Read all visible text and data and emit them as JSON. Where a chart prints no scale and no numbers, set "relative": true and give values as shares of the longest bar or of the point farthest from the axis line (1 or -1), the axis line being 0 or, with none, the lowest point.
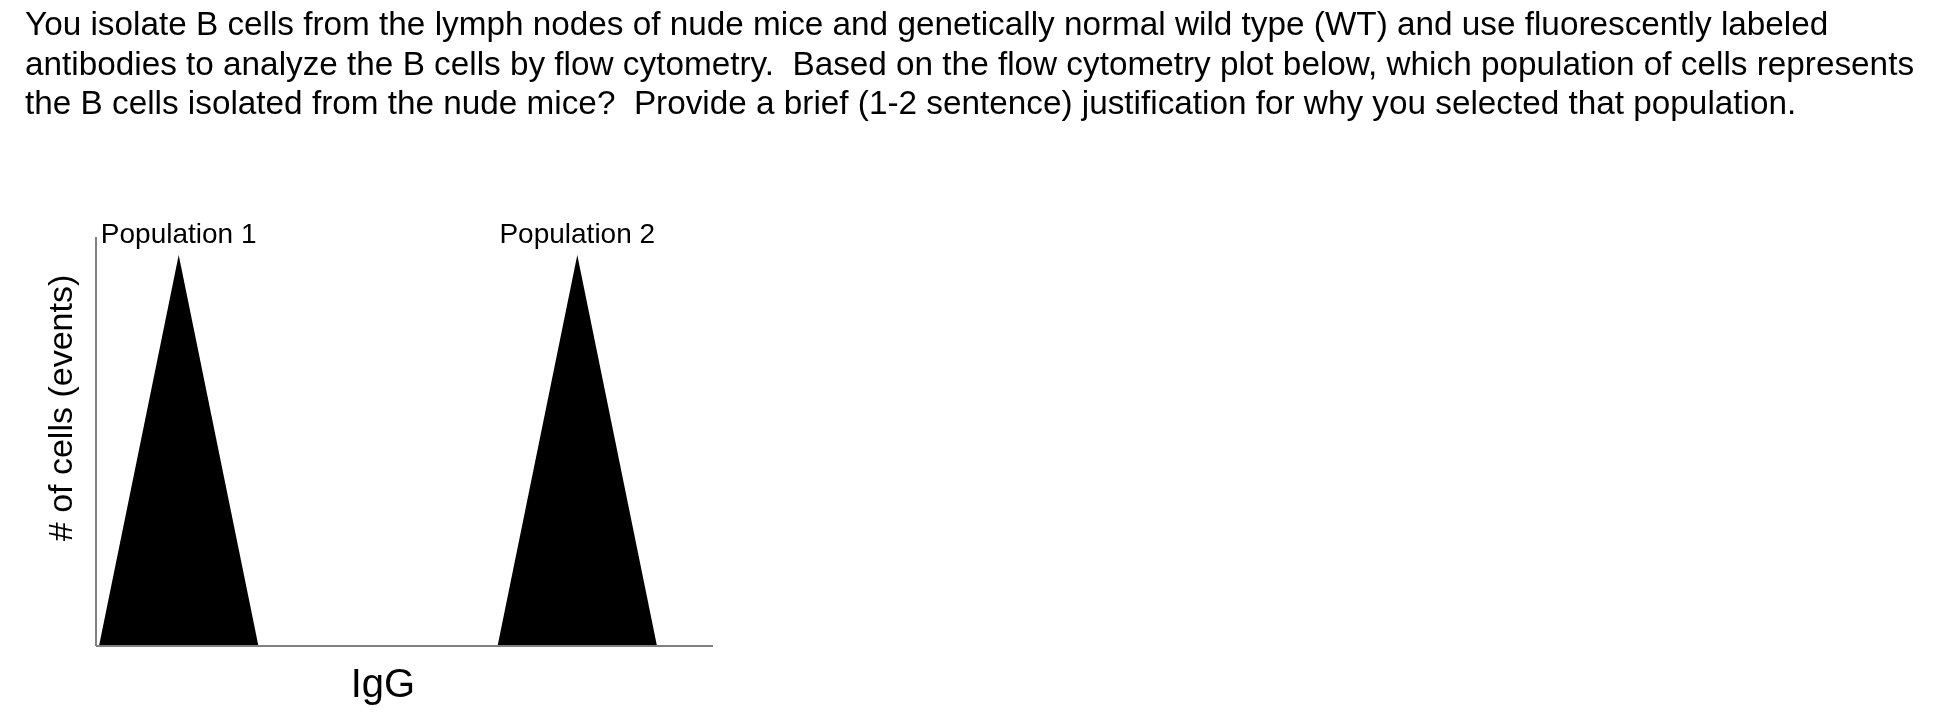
{
  "chart_data": {
    "type": "area",
    "title": "You isolate B cells from the lymph nodes of nude mice and genetically normal wild type (WT) and use fluorescently labeled antibodies to analyze the B cells by flow cytometry.  Based on the flow cytometry plot below, which population of cells represents the B cells isolated from the nude mice?  Provide a brief (1-2 sentence) justification for why you selected that population.",
    "xlabel": "IgG",
    "ylabel": "# of cells (events)",
    "relative": true,
    "categories": [
      null,
      null,
      null,
      null,
      null,
      null,
      null,
      null
    ],
    "series": [
      {
        "name": "Population 1",
        "color": "#000000",
        "values": [
          0,
          1,
          0,
          null,
          null,
          null,
          null,
          null
        ]
      },
      {
        "name": "Population 2",
        "color": "#000000",
        "values": [
          null,
          null,
          null,
          null,
          null,
          0,
          1,
          0
        ]
      }
    ]
  }
}
